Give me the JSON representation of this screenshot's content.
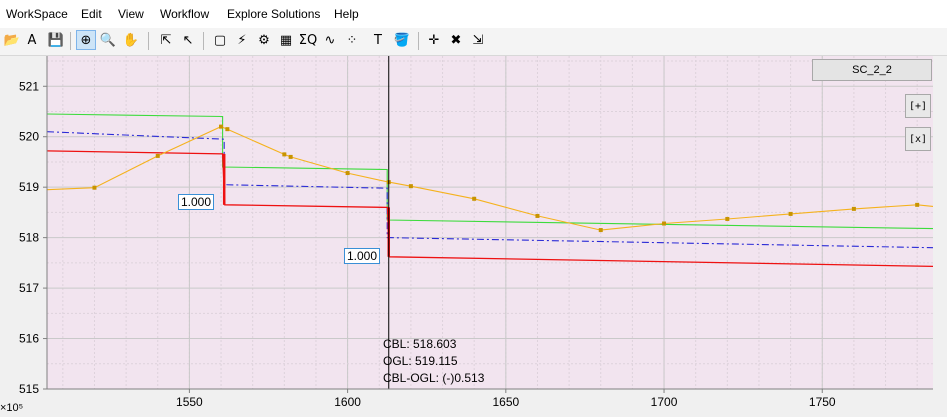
{
  "menu": [
    "WorkSpace",
    "Edit",
    "View",
    "Workflow",
    "Explore Solutions",
    "Help"
  ],
  "toolbar": {
    "buttons": [
      {
        "name": "open-folder-icon",
        "glyph": "📂",
        "active": false
      },
      {
        "name": "text-style-icon",
        "glyph": "A",
        "active": false
      },
      {
        "name": "save-icon",
        "glyph": "💾",
        "active": false
      },
      {
        "name": "zoom-in-icon",
        "glyph": "⊕",
        "active": true
      },
      {
        "name": "zoom-icon",
        "glyph": "🔍",
        "active": false
      },
      {
        "name": "pan-hand-icon",
        "glyph": "✋",
        "active": false
      },
      {
        "name": "select-data-icon",
        "glyph": "⇱",
        "active": false
      },
      {
        "name": "pointer-icon",
        "glyph": "↖",
        "active": false
      },
      {
        "name": "new-page-icon",
        "glyph": "▢",
        "active": false
      },
      {
        "name": "profile-tool-icon",
        "glyph": "⚡",
        "active": false
      },
      {
        "name": "settings-gear-icon",
        "glyph": "⚙",
        "active": false
      },
      {
        "name": "grid-view-icon",
        "glyph": "▦",
        "active": false
      },
      {
        "name": "sigma-icon",
        "glyph": "ΣQ",
        "active": false
      },
      {
        "name": "line-graph-icon",
        "glyph": "∿",
        "active": false
      },
      {
        "name": "scatter-icon",
        "glyph": "⁘",
        "active": false
      },
      {
        "name": "text-tool-icon",
        "glyph": "T",
        "active": false
      },
      {
        "name": "paint-bucket-icon",
        "glyph": "🪣",
        "active": false
      },
      {
        "name": "add-point-icon",
        "glyph": "✛",
        "active": false
      },
      {
        "name": "delete-point-icon",
        "glyph": "✖",
        "active": false
      },
      {
        "name": "export-icon",
        "glyph": "⇲",
        "active": false
      }
    ]
  },
  "scenario_button": "SC_2_2",
  "expand_button": "[+]",
  "close_button": "[x]",
  "annotations": [
    "1.000",
    "1.000"
  ],
  "cursor_readout": [
    "CBL: 518.603",
    "OGL: 519.115",
    "CBL-OGL: (-)0.513"
  ],
  "x_multiplier": "×10⁵",
  "colors": {
    "plot_bg": "#f2e4ef",
    "grid": "#c9c9c9",
    "green": "#3ddb3d",
    "blue": "#2a2ad6",
    "red": "#ee1111",
    "orange": "#f5b21d",
    "marker": "#c89400",
    "cursor": "#000000"
  },
  "chart_data": {
    "type": "line",
    "xlim": [
      1505,
      1785
    ],
    "ylim": [
      515,
      521.6
    ],
    "xticks": [
      1550,
      1600,
      1650,
      1700,
      1750
    ],
    "yticks": [
      515,
      516,
      517,
      518,
      519,
      520,
      521
    ],
    "grid": true,
    "cursor_x": 1613,
    "series": [
      {
        "color": "green",
        "style": "solid",
        "x": [
          1505,
          1560.5,
          1560.5,
          1612.5,
          1612.5,
          1785
        ],
        "y": [
          520.45,
          520.4,
          519.4,
          519.35,
          518.35,
          518.18
        ]
      },
      {
        "color": "blue",
        "style": "dashdot",
        "x": [
          1505,
          1561,
          1561,
          1612.5,
          1612.5,
          1785
        ],
        "y": [
          520.1,
          519.95,
          519.05,
          518.98,
          518.0,
          517.8
        ]
      },
      {
        "color": "red",
        "style": "solid",
        "x": [
          1505,
          1560.5,
          1560.5,
          1561.2,
          1561.2,
          1612.6,
          1612.6,
          1613.2,
          1613.2,
          1785
        ],
        "y": [
          519.72,
          519.66,
          519.66,
          518.65,
          518.65,
          518.6,
          518.6,
          517.62,
          517.62,
          517.43
        ]
      },
      {
        "color": "orange",
        "style": "solid",
        "markers": true,
        "x": [
          1505,
          1520,
          1540,
          1560,
          1562,
          1580,
          1582,
          1600,
          1613,
          1620,
          1640,
          1660,
          1680,
          1700,
          1720,
          1740,
          1760,
          1780,
          1785
        ],
        "y": [
          518.95,
          518.99,
          519.62,
          520.2,
          520.15,
          519.65,
          519.6,
          519.28,
          519.1,
          519.02,
          518.77,
          518.43,
          518.15,
          518.28,
          518.37,
          518.47,
          518.57,
          518.65,
          518.62
        ],
        "marker_idx": [
          1,
          2,
          3,
          4,
          5,
          6,
          7,
          8,
          9,
          10,
          11,
          12,
          13,
          14,
          15,
          16,
          17
        ]
      }
    ]
  }
}
